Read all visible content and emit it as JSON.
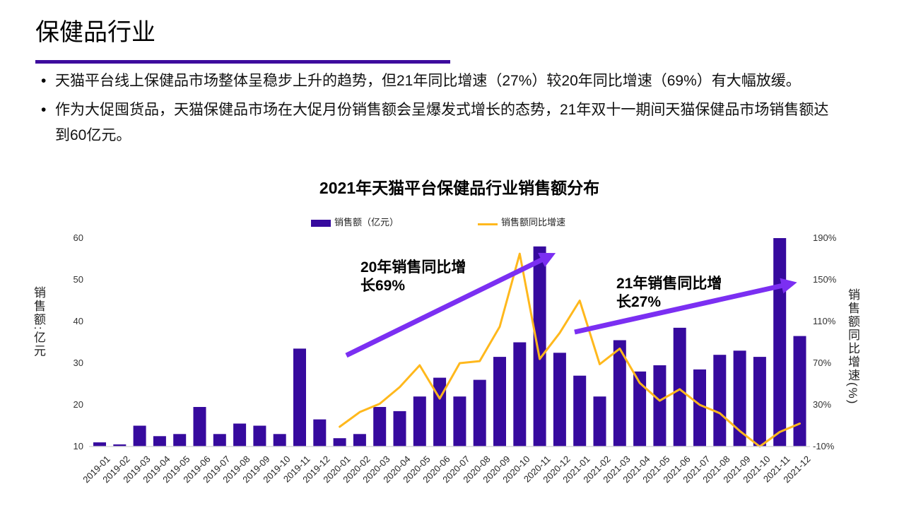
{
  "page": {
    "title": "保健品行业",
    "bullet_marker": "•",
    "bullets": [
      "天猫平台线上保健品市场整体呈稳步上升的趋势，但21年同比增速（27%）较20年同比增速（69%）有大幅放缓。",
      "作为大促囤货品，天猫保健品市场在大促月份销售额会呈爆发式增长的态势，21年双十一期间天猫保健品市场销售额达到60亿元。"
    ],
    "accent_colors": {
      "title_underline": "#3D0C9E",
      "bar": "#360A9E",
      "line": "#FFB81C",
      "arrow": "#7B2FF2",
      "axis_line": "#D9D9D9"
    }
  },
  "chart_data": {
    "type": "bar",
    "title": "2021年天猫平台保健品行业销售额分布",
    "categories": [
      "2019-01",
      "2019-02",
      "2019-03",
      "2019-04",
      "2019-05",
      "2019-06",
      "2019-07",
      "2019-08",
      "2019-09",
      "2019-10",
      "2019-11",
      "2019-12",
      "2020-01",
      "2020-02",
      "2020-03",
      "2020-04",
      "2020-05",
      "2020-06",
      "2020-07",
      "2020-08",
      "2020-09",
      "2020-10",
      "2020-11",
      "2020-12",
      "2021-01",
      "2021-02",
      "2021-03",
      "2021-04",
      "2021-05",
      "2021-06",
      "2021-07",
      "2021-08",
      "2021-09",
      "2021-10",
      "2021-11",
      "2021-12"
    ],
    "series": [
      {
        "name": "销售额（亿元）",
        "type": "bar",
        "axis": "left",
        "color": "#360A9E",
        "values": [
          11,
          10.5,
          15,
          12.5,
          13,
          19.5,
          13,
          15.5,
          15,
          13,
          33.5,
          16.5,
          12,
          13,
          19.5,
          18.5,
          22,
          26.5,
          22,
          26,
          31.5,
          35,
          58,
          32.5,
          27,
          22,
          35.5,
          28,
          29.5,
          38.5,
          28.5,
          32,
          33,
          31.5,
          60,
          36.5
        ]
      },
      {
        "name": "销售额同比增速",
        "type": "line",
        "axis": "right",
        "color": "#FFB81C",
        "start_category": "2020-01",
        "values_pct": [
          9,
          23,
          31,
          47,
          68,
          36,
          70,
          72,
          105,
          175,
          74,
          99,
          130,
          69,
          84,
          51,
          34,
          45,
          30,
          22,
          5,
          -10,
          4,
          12
        ]
      }
    ],
    "left_axis": {
      "label": "销售额:亿元",
      "ticks": [
        60,
        50,
        40,
        30,
        20,
        10
      ],
      "range": [
        10,
        60
      ]
    },
    "right_axis": {
      "label": "销售额同比增速(%)",
      "ticks": [
        "190%",
        "150%",
        "110%",
        "70%",
        "30%",
        "-10%"
      ],
      "tick_values": [
        190,
        150,
        110,
        70,
        30,
        -10
      ],
      "range": [
        -10,
        190
      ]
    },
    "grid": "off",
    "legend_position": "top",
    "annotations": [
      {
        "text": "20年销售同比增长69%"
      },
      {
        "text": "21年销售同比增长27%"
      }
    ]
  }
}
